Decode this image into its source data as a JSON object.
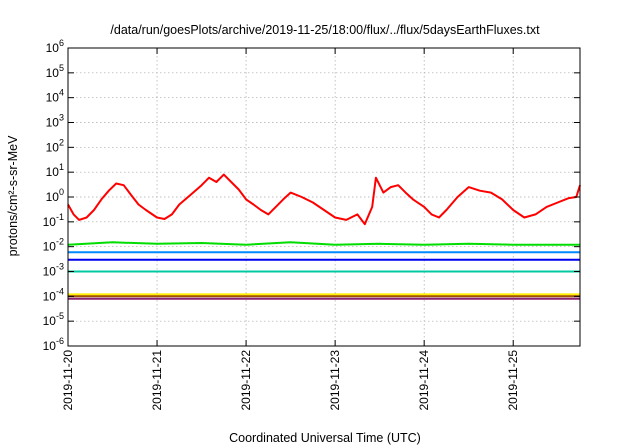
{
  "chart_data": {
    "type": "line",
    "title": "/data/run/goesPlots/archive/2019-11-25/18:00/flux/../flux/5daysEarthFluxes.txt",
    "xlabel": "Coordinated Universal Time (UTC)",
    "ylabel": "protons/cm²-s-sr-MeV",
    "y_scale": "log",
    "ylim": [
      1e-06,
      1000000.0
    ],
    "y_ticks": [
      {
        "value": 1e-06,
        "base": "10",
        "exp": "-6"
      },
      {
        "value": 1e-05,
        "base": "10",
        "exp": "-5"
      },
      {
        "value": 0.0001,
        "base": "10",
        "exp": "-4"
      },
      {
        "value": 0.001,
        "base": "10",
        "exp": "-3"
      },
      {
        "value": 0.01,
        "base": "10",
        "exp": "-2"
      },
      {
        "value": 0.1,
        "base": "10",
        "exp": "-1"
      },
      {
        "value": 1.0,
        "base": "10",
        "exp": "0"
      },
      {
        "value": 10.0,
        "base": "10",
        "exp": "1"
      },
      {
        "value": 100.0,
        "base": "10",
        "exp": "2"
      },
      {
        "value": 1000.0,
        "base": "10",
        "exp": "3"
      },
      {
        "value": 10000.0,
        "base": "10",
        "exp": "4"
      },
      {
        "value": 100000.0,
        "base": "10",
        "exp": "5"
      },
      {
        "value": 1000000.0,
        "base": "10",
        "exp": "6"
      }
    ],
    "xlim": [
      "2019-11-20T00:00",
      "2019-11-25T18:00"
    ],
    "x_ticks": [
      "2019-11-20",
      "2019-11-21",
      "2019-11-22",
      "2019-11-23",
      "2019-11-24",
      "2019-11-25"
    ],
    "grid": true,
    "legend": "none",
    "series": [
      {
        "color": "#ff0000",
        "x": [
          "2019-11-20T00:00",
          "2019-11-20T01:30",
          "2019-11-20T03:00",
          "2019-11-20T05:00",
          "2019-11-20T07:00",
          "2019-11-20T09:00",
          "2019-11-20T11:00",
          "2019-11-20T13:00",
          "2019-11-20T15:00",
          "2019-11-20T17:00",
          "2019-11-20T19:00",
          "2019-11-20T21:00",
          "2019-11-21T00:00",
          "2019-11-21T02:00",
          "2019-11-21T04:00",
          "2019-11-21T06:00",
          "2019-11-21T09:00",
          "2019-11-21T12:00",
          "2019-11-21T14:00",
          "2019-11-21T16:00",
          "2019-11-21T18:00",
          "2019-11-21T20:00",
          "2019-11-21T22:00",
          "2019-11-22T00:00",
          "2019-11-22T02:00",
          "2019-11-22T04:00",
          "2019-11-22T06:00",
          "2019-11-22T08:00",
          "2019-11-22T10:00",
          "2019-11-22T12:00",
          "2019-11-22T15:00",
          "2019-11-22T18:00",
          "2019-11-22T21:00",
          "2019-11-23T00:00",
          "2019-11-23T03:00",
          "2019-11-23T06:00",
          "2019-11-23T08:00",
          "2019-11-23T10:00",
          "2019-11-23T11:00",
          "2019-11-23T13:00",
          "2019-11-23T15:00",
          "2019-11-23T17:00",
          "2019-11-23T19:00",
          "2019-11-23T21:00",
          "2019-11-24T00:00",
          "2019-11-24T02:00",
          "2019-11-24T04:00",
          "2019-11-24T06:00",
          "2019-11-24T09:00",
          "2019-11-24T12:00",
          "2019-11-24T15:00",
          "2019-11-24T18:00",
          "2019-11-24T21:00",
          "2019-11-25T00:00",
          "2019-11-25T03:00",
          "2019-11-25T06:00",
          "2019-11-25T09:00",
          "2019-11-25T12:00",
          "2019-11-25T15:00",
          "2019-11-25T17:00",
          "2019-11-25T18:00"
        ],
        "values": [
          0.5,
          0.2,
          0.12,
          0.15,
          0.3,
          0.8,
          1.8,
          3.5,
          3.0,
          1.2,
          0.5,
          0.3,
          0.15,
          0.13,
          0.2,
          0.5,
          1.2,
          3.0,
          6.0,
          4.0,
          8.0,
          4.0,
          2.0,
          0.8,
          0.5,
          0.3,
          0.2,
          0.4,
          0.8,
          1.5,
          1.0,
          0.6,
          0.3,
          0.15,
          0.12,
          0.2,
          0.08,
          0.4,
          6.0,
          1.5,
          2.5,
          3.0,
          1.5,
          0.8,
          0.4,
          0.2,
          0.15,
          0.3,
          1.0,
          2.5,
          1.8,
          1.5,
          0.8,
          0.3,
          0.15,
          0.2,
          0.4,
          0.6,
          0.9,
          1.0,
          3.0
        ]
      },
      {
        "color": "#00dd00",
        "x": [
          "2019-11-20T00:00",
          "2019-11-20T12:00",
          "2019-11-21T00:00",
          "2019-11-21T12:00",
          "2019-11-22T00:00",
          "2019-11-22T12:00",
          "2019-11-23T00:00",
          "2019-11-23T12:00",
          "2019-11-24T00:00",
          "2019-11-24T12:00",
          "2019-11-25T00:00",
          "2019-11-25T12:00",
          "2019-11-25T18:00"
        ],
        "values": [
          0.012,
          0.015,
          0.013,
          0.014,
          0.012,
          0.015,
          0.012,
          0.013,
          0.012,
          0.013,
          0.012,
          0.012,
          0.012
        ]
      },
      {
        "color": "#0088ff",
        "x": [
          "2019-11-20T00:00",
          "2019-11-21T00:00",
          "2019-11-22T00:00",
          "2019-11-23T00:00",
          "2019-11-24T00:00",
          "2019-11-25T00:00",
          "2019-11-25T18:00"
        ],
        "values": [
          0.006,
          0.006,
          0.006,
          0.006,
          0.006,
          0.006,
          0.006
        ]
      },
      {
        "color": "#0000ee",
        "x": [
          "2019-11-20T00:00",
          "2019-11-21T00:00",
          "2019-11-22T00:00",
          "2019-11-23T00:00",
          "2019-11-24T00:00",
          "2019-11-25T00:00",
          "2019-11-25T18:00"
        ],
        "values": [
          0.003,
          0.003,
          0.003,
          0.003,
          0.003,
          0.003,
          0.003
        ]
      },
      {
        "color": "#00c8a0",
        "x": [
          "2019-11-20T00:00",
          "2019-11-21T00:00",
          "2019-11-22T00:00",
          "2019-11-23T00:00",
          "2019-11-24T00:00",
          "2019-11-25T00:00",
          "2019-11-25T18:00"
        ],
        "values": [
          0.001,
          0.001,
          0.001,
          0.001,
          0.001,
          0.001,
          0.001
        ]
      },
      {
        "color": "#ffee00",
        "x": [
          "2019-11-20T00:00",
          "2019-11-21T00:00",
          "2019-11-22T00:00",
          "2019-11-23T00:00",
          "2019-11-24T00:00",
          "2019-11-25T00:00",
          "2019-11-25T18:00"
        ],
        "values": [
          0.00012,
          0.00012,
          0.00012,
          0.00012,
          0.00012,
          0.00012,
          0.00012
        ]
      },
      {
        "color": "#a05000",
        "x": [
          "2019-11-20T00:00",
          "2019-11-21T00:00",
          "2019-11-22T00:00",
          "2019-11-23T00:00",
          "2019-11-24T00:00",
          "2019-11-25T00:00",
          "2019-11-25T18:00"
        ],
        "values": [
          0.0001,
          0.0001,
          0.0001,
          0.0001,
          0.0001,
          0.0001,
          0.0001
        ]
      },
      {
        "color": "#8a2070",
        "x": [
          "2019-11-20T00:00",
          "2019-11-21T00:00",
          "2019-11-22T00:00",
          "2019-11-23T00:00",
          "2019-11-24T00:00",
          "2019-11-25T00:00",
          "2019-11-25T18:00"
        ],
        "values": [
          8e-05,
          8e-05,
          8e-05,
          8e-05,
          8e-05,
          8e-05,
          8e-05
        ]
      }
    ]
  }
}
